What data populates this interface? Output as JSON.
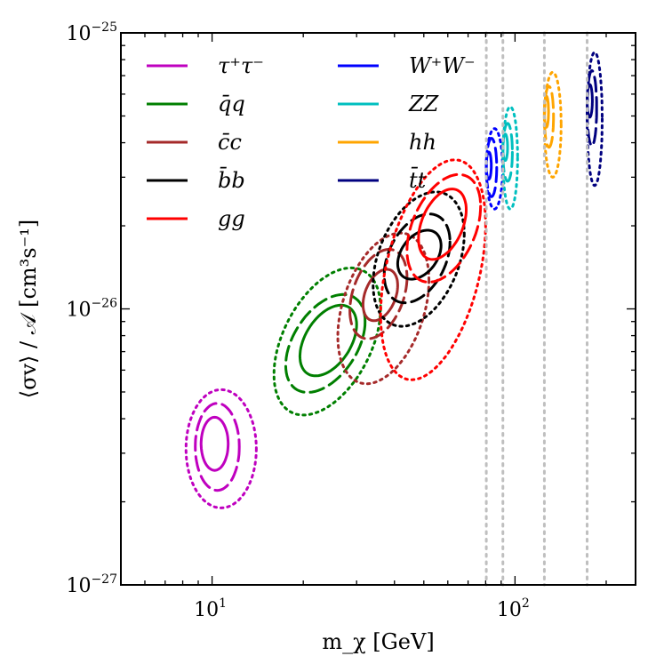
{
  "chart_data": {
    "type": "contour",
    "title": "",
    "xlabel": "m_χ [GeV]",
    "ylabel": "⟨σv⟩ / 𝒜 [cm³s⁻¹]",
    "xscale": "log",
    "yscale": "log",
    "xlim": [
      5,
      250
    ],
    "ylim": [
      1e-27,
      1e-25
    ],
    "x_ticks": [
      {
        "value": 10,
        "mantissa": "10",
        "exp": "1"
      },
      {
        "value": 100,
        "mantissa": "10",
        "exp": "2"
      }
    ],
    "y_ticks": [
      {
        "value": 1e-27,
        "mantissa": "10",
        "exp": "−27"
      },
      {
        "value": 1e-26,
        "mantissa": "10",
        "exp": "−26"
      },
      {
        "value": 1e-25,
        "mantissa": "10",
        "exp": "−25"
      }
    ],
    "contour_levels": [
      "solid",
      "dashed",
      "dotted"
    ],
    "threshold_lines": [
      80.4,
      91.2,
      125,
      173
    ],
    "legend_position": "top-left",
    "legend_columns": 2,
    "series": [
      {
        "name": "tau",
        "label": "τ⁺τ⁻",
        "color": "#bf00bf",
        "center_x": 10.2,
        "center_y": 3.25e-27,
        "ellipses": [
          {
            "x_lo": 9.2,
            "x_hi": 11.3,
            "y_lo": 2.6e-27,
            "y_hi": 4.05e-27,
            "tilt": 0.0
          },
          {
            "x_lo": 8.8,
            "x_hi": 12.3,
            "y_lo": 2.2e-27,
            "y_hi": 4.55e-27,
            "tilt": 0.0
          },
          {
            "x_lo": 8.2,
            "x_hi": 14.0,
            "y_lo": 1.9e-27,
            "y_hi": 5.1e-27,
            "tilt": 0.0
          }
        ]
      },
      {
        "name": "qq",
        "label": "q̄q",
        "color": "#007f00",
        "center_x": 24,
        "center_y": 7.7e-27,
        "ellipses": [
          {
            "x_lo": 19.5,
            "x_hi": 30,
            "y_lo": 5.9e-27,
            "y_hi": 1e-26,
            "tilt": 0.5
          },
          {
            "x_lo": 17.5,
            "x_hi": 32,
            "y_lo": 5.2e-27,
            "y_hi": 1.08e-26,
            "tilt": 0.5
          },
          {
            "x_lo": 16.0,
            "x_hi": 36,
            "y_lo": 4.4e-27,
            "y_hi": 1.32e-26,
            "tilt": 0.5
          }
        ]
      },
      {
        "name": "cc",
        "label": "c̄c",
        "color": "#a52a2a",
        "center_x": 36,
        "center_y": 1.1e-26,
        "ellipses": [
          {
            "x_lo": 31.5,
            "x_hi": 41,
            "y_lo": 9.2e-27,
            "y_hi": 1.37e-26,
            "tilt": 0.4
          },
          {
            "x_lo": 28.5,
            "x_hi": 44,
            "y_lo": 8e-27,
            "y_hi": 1.6e-26,
            "tilt": 0.4
          },
          {
            "x_lo": 26.0,
            "x_hi": 52,
            "y_lo": 5.6e-27,
            "y_hi": 1.8e-26,
            "tilt": 0.4
          }
        ]
      },
      {
        "name": "bb",
        "label": "b̄b",
        "color": "#000000",
        "center_x": 46,
        "center_y": 1.55e-26,
        "ellipses": [
          {
            "x_lo": 41,
            "x_hi": 57,
            "y_lo": 1.3e-26,
            "y_hi": 1.9e-26,
            "tilt": 0.4
          },
          {
            "x_lo": 37,
            "x_hi": 61,
            "y_lo": 1.08e-26,
            "y_hi": 2.15e-26,
            "tilt": 0.4
          },
          {
            "x_lo": 34,
            "x_hi": 68,
            "y_lo": 9e-27,
            "y_hi": 2.55e-26,
            "tilt": 0.4
          }
        ]
      },
      {
        "name": "gg",
        "label": "gg",
        "color": "#ff0000",
        "center_x": 56,
        "center_y": 2e-26,
        "ellipses": [
          {
            "x_lo": 48,
            "x_hi": 69,
            "y_lo": 1.55e-26,
            "y_hi": 2.65e-26,
            "tilt": 0.45
          },
          {
            "x_lo": 44,
            "x_hi": 77,
            "y_lo": 1.3e-26,
            "y_hi": 2.95e-26,
            "tilt": 0.45
          },
          {
            "x_lo": 36,
            "x_hi": 80,
            "y_lo": 6e-27,
            "y_hi": 3.2e-26,
            "tilt": 0.45
          }
        ]
      },
      {
        "name": "WW",
        "label": "W⁺W⁻",
        "color": "#0000ff",
        "center_x": 82,
        "center_y": 3.2e-26,
        "ellipses": [
          {
            "x_lo": 80.4,
            "x_hi": 83.5,
            "y_lo": 2.95e-26,
            "y_hi": 3.7e-26,
            "tilt": 0.0
          },
          {
            "x_lo": 80.4,
            "x_hi": 87,
            "y_lo": 2.55e-26,
            "y_hi": 4.15e-26,
            "tilt": 0.0
          },
          {
            "x_lo": 80.4,
            "x_hi": 91,
            "y_lo": 2.3e-26,
            "y_hi": 4.5e-26,
            "tilt": 0.0
          }
        ]
      },
      {
        "name": "ZZ",
        "label": "ZZ",
        "color": "#00bfbf",
        "center_x": 93,
        "center_y": 3.9e-26,
        "ellipses": [
          {
            "x_lo": 91.2,
            "x_hi": 94.5,
            "y_lo": 3.45e-26,
            "y_hi": 4.3e-26,
            "tilt": 0.0
          },
          {
            "x_lo": 91.2,
            "x_hi": 98,
            "y_lo": 2.9e-26,
            "y_hi": 4.7e-26,
            "tilt": 0.0
          },
          {
            "x_lo": 91.2,
            "x_hi": 102,
            "y_lo": 2.3e-26,
            "y_hi": 5.4e-26,
            "tilt": 0.0
          }
        ]
      },
      {
        "name": "hh",
        "label": "hh",
        "color": "#ffa500",
        "center_x": 127,
        "center_y": 5.2e-26,
        "ellipses": [
          {
            "x_lo": 125,
            "x_hi": 129,
            "y_lo": 4.55e-26,
            "y_hi": 5.9e-26,
            "tilt": 0.0
          },
          {
            "x_lo": 125,
            "x_hi": 134,
            "y_lo": 3.85e-26,
            "y_hi": 6.4e-26,
            "tilt": 0.0
          },
          {
            "x_lo": 125,
            "x_hi": 142,
            "y_lo": 3e-26,
            "y_hi": 7.2e-26,
            "tilt": 0.0
          }
        ]
      },
      {
        "name": "tt",
        "label": "t̄t",
        "color": "#00007f",
        "center_x": 177,
        "center_y": 5.7e-26,
        "ellipses": [
          {
            "x_lo": 173,
            "x_hi": 180,
            "y_lo": 4.95e-26,
            "y_hi": 6.5e-26,
            "tilt": 0.0
          },
          {
            "x_lo": 173,
            "x_hi": 186,
            "y_lo": 3.9e-26,
            "y_hi": 7.3e-26,
            "tilt": 0.0
          },
          {
            "x_lo": 173,
            "x_hi": 194,
            "y_lo": 2.8e-26,
            "y_hi": 8.5e-26,
            "tilt": 0.0
          }
        ]
      }
    ],
    "threshold_color": "#bfbfbf"
  }
}
